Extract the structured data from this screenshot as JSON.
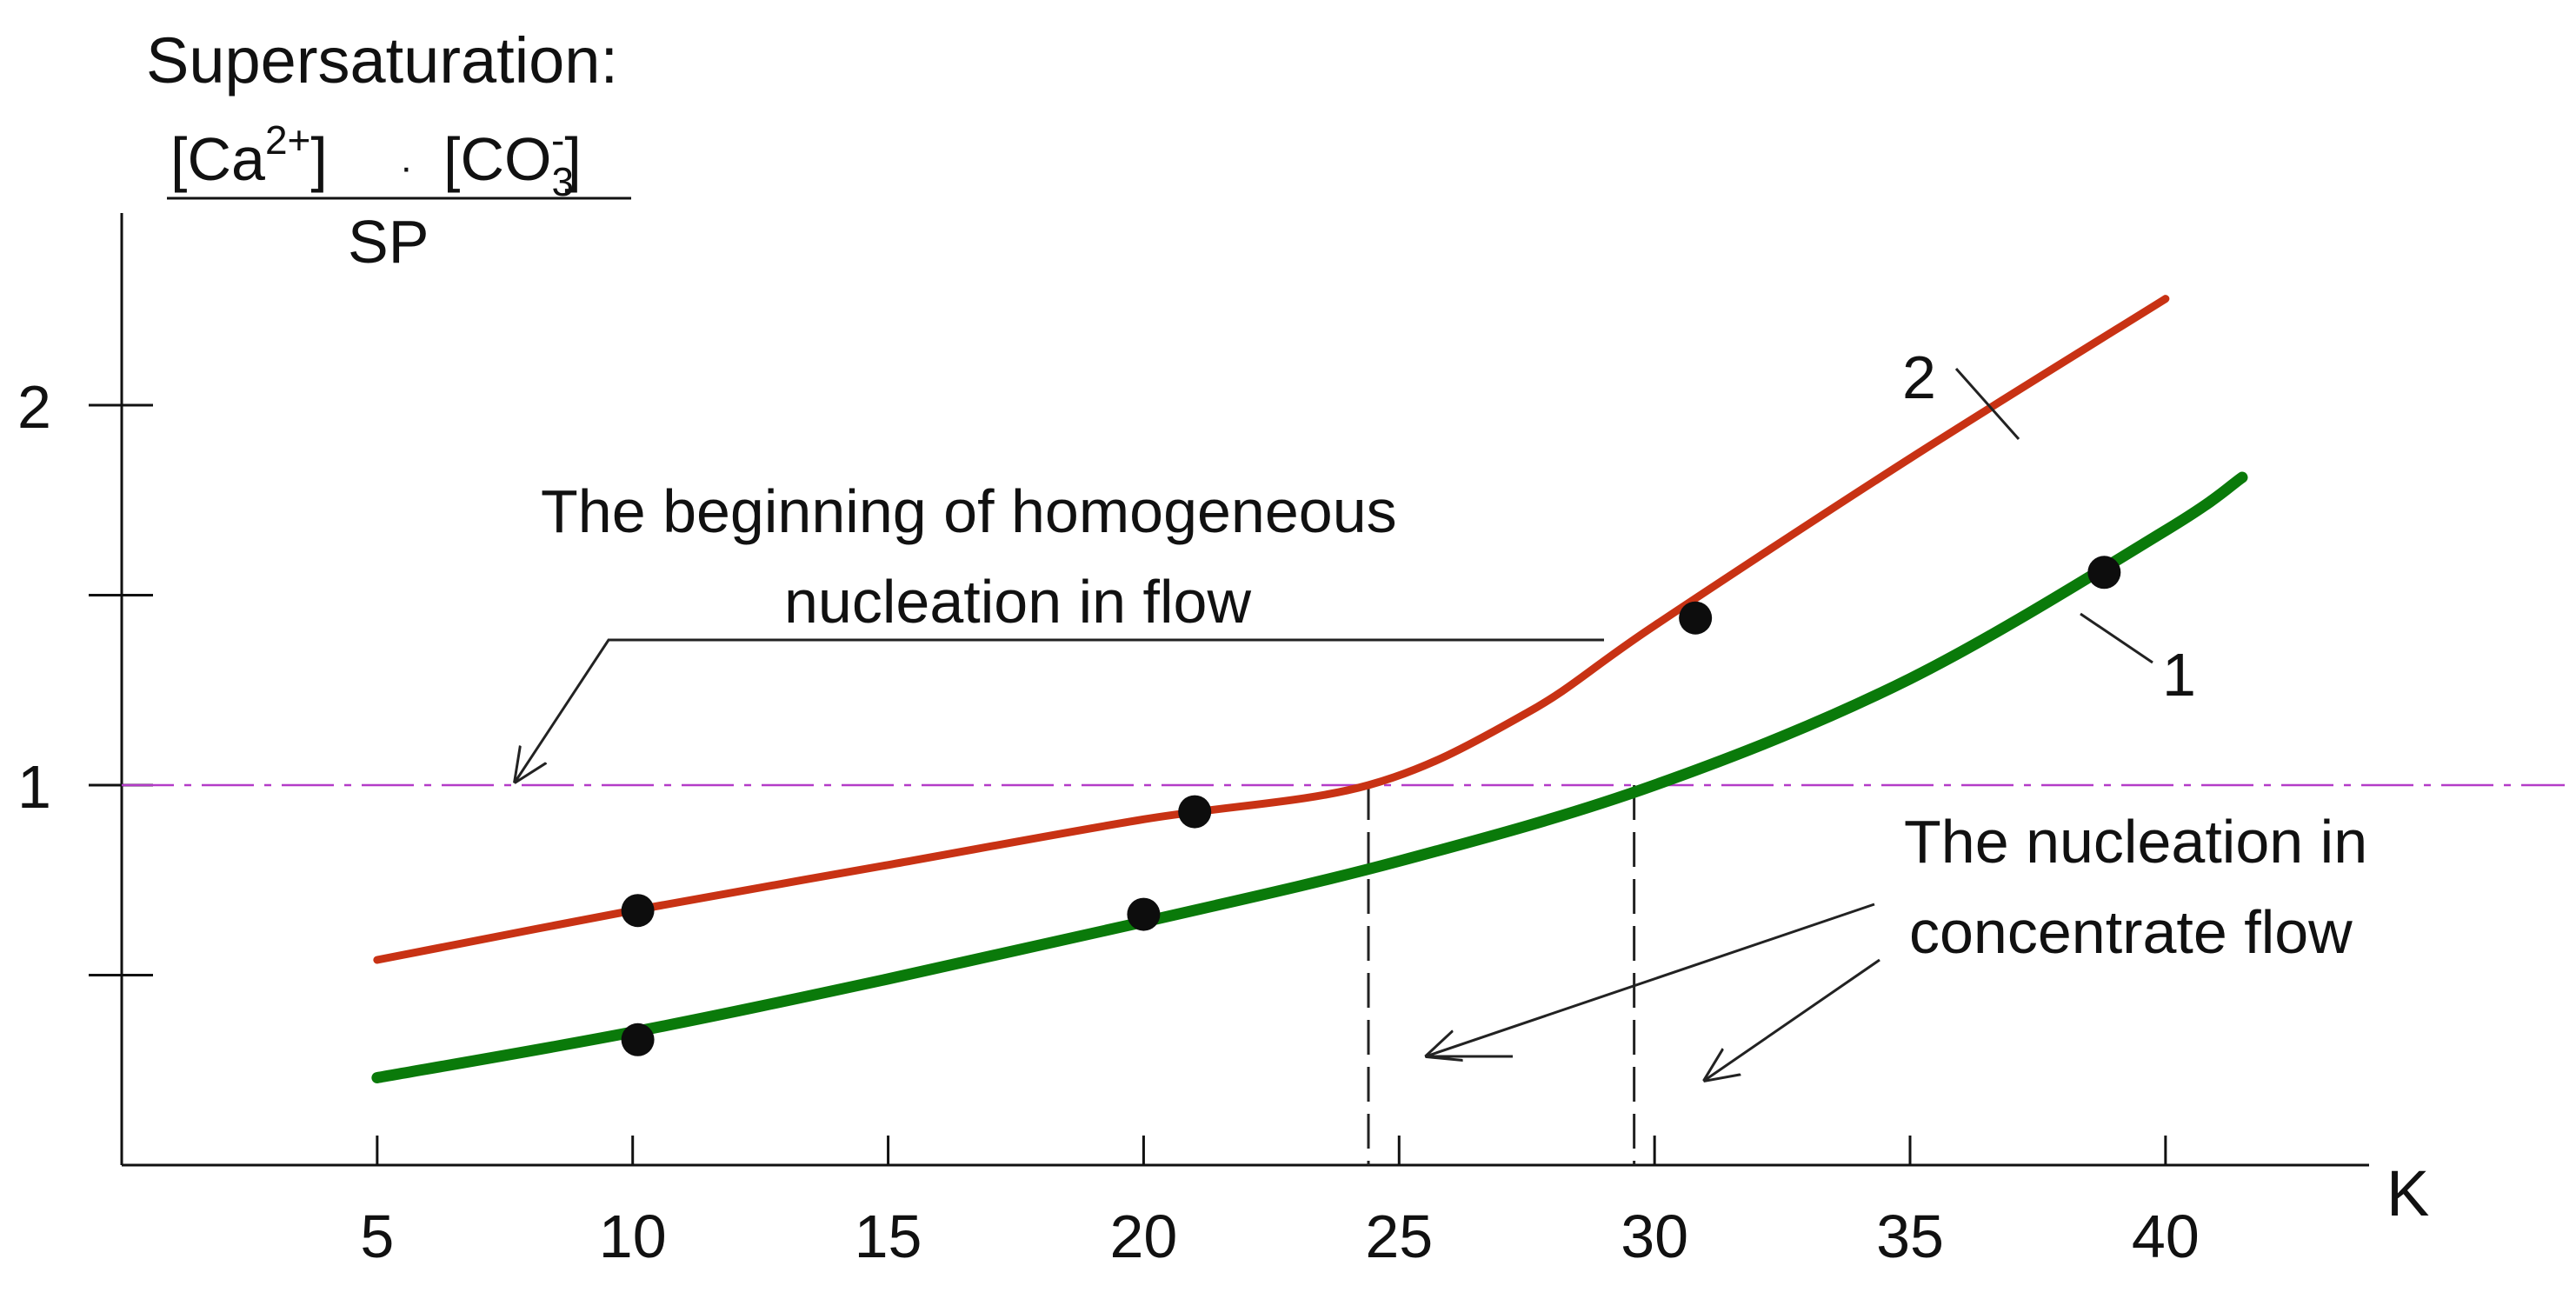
{
  "chart_data": {
    "type": "line",
    "ylabel": {
      "line1": "Supersaturation:",
      "numerator_a": "[Ca",
      "numerator_a_sup": "2+",
      "numerator_dot": "·",
      "numerator_b": "[CO",
      "numerator_b_sub": "3",
      "numerator_b_sup": "-",
      "denominator": "SP"
    },
    "xlabel": "K",
    "xlim": [
      0,
      42
    ],
    "ylim": [
      0,
      2.5
    ],
    "x_ticks": [
      5,
      10,
      15,
      20,
      25,
      30,
      35,
      40
    ],
    "x_tick_labels": [
      "5",
      "10",
      "15",
      "20",
      "25",
      "30",
      "35",
      "40"
    ],
    "y_ticks": [
      0.5,
      1,
      1.5,
      2
    ],
    "y_tick_labels": [
      "",
      "1",
      "",
      "2"
    ],
    "grid": false,
    "series": [
      {
        "name": "1",
        "color": "#0a7a0a",
        "x": [
          5,
          10,
          15,
          20,
          25,
          30,
          35,
          40,
          41.5
        ],
        "y": [
          0.23,
          0.35,
          0.49,
          0.64,
          0.8,
          1.0,
          1.28,
          1.67,
          1.81
        ]
      },
      {
        "name": "2",
        "color": "#c83214",
        "x": [
          5,
          10,
          15,
          20,
          24.4,
          27.5,
          30,
          35,
          40
        ],
        "y": [
          0.54,
          0.67,
          0.79,
          0.91,
          1.0,
          1.19,
          1.42,
          1.86,
          2.28
        ]
      }
    ],
    "points": [
      {
        "x": 10.1,
        "y": 0.33
      },
      {
        "x": 10.1,
        "y": 0.67
      },
      {
        "x": 20.0,
        "y": 0.66
      },
      {
        "x": 21.0,
        "y": 0.93
      },
      {
        "x": 30.8,
        "y": 1.44
      },
      {
        "x": 38.8,
        "y": 1.56
      }
    ],
    "reference_line": {
      "y": 1,
      "color": "#b43cc8",
      "style": "dash-dot"
    },
    "crossing_markers": [
      24.4,
      29.6
    ],
    "annotations": {
      "homogeneous_line1": "The beginning of  homogeneous",
      "homogeneous_line2": "nucleation in flow",
      "concentrate_line1": "The nucleation in",
      "concentrate_line2": "concentrate flow",
      "curve1_label": "1",
      "curve2_label": "2"
    }
  }
}
